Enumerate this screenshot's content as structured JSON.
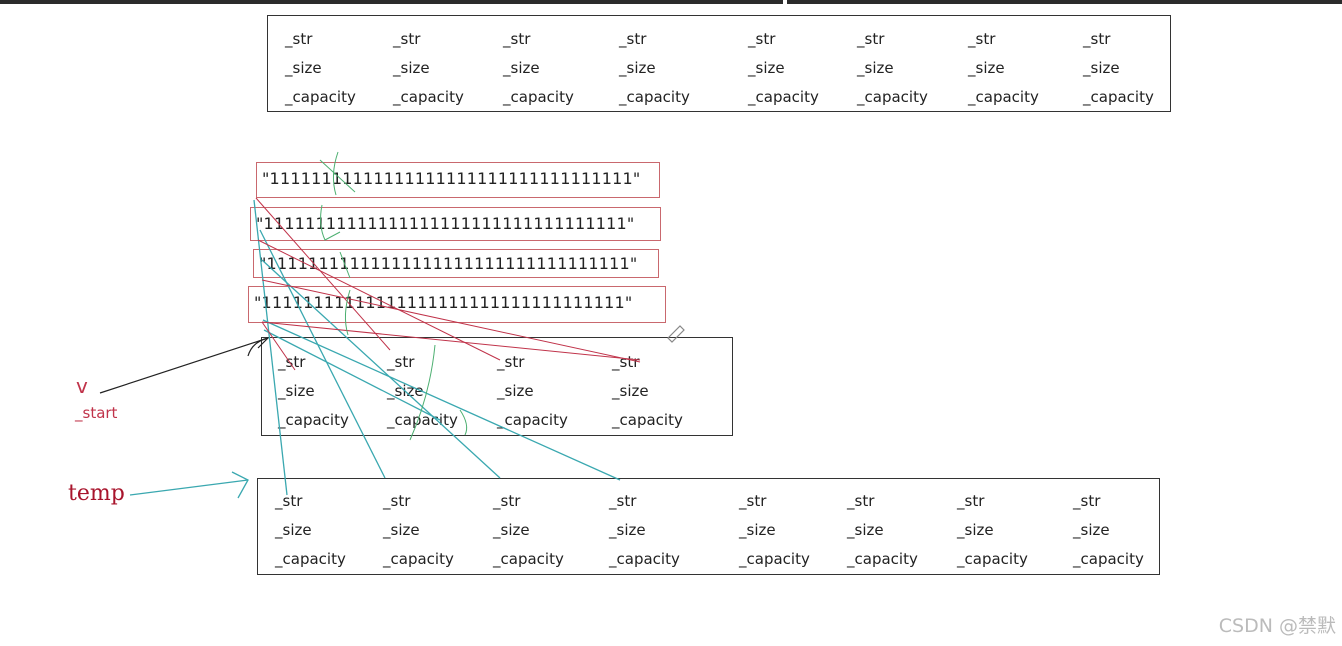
{
  "top_vector": {
    "cells": [
      {
        "str": "_str",
        "size": "_size",
        "capacity": "_capacity"
      },
      {
        "str": "_str",
        "size": "_size",
        "capacity": "_capacity"
      },
      {
        "str": "_str",
        "size": "_size",
        "capacity": "_capacity"
      },
      {
        "str": "_str",
        "size": "_size",
        "capacity": "_capacity"
      },
      {
        "str": "_str",
        "size": "_size",
        "capacity": "_capacity"
      },
      {
        "str": "_str",
        "size": "_size",
        "capacity": "_capacity"
      },
      {
        "str": "_str",
        "size": "_size",
        "capacity": "_capacity"
      },
      {
        "str": "_str",
        "size": "_size",
        "capacity": "_capacity"
      }
    ]
  },
  "strings": [
    "\"11111111111111111111111111111111111\"",
    "\"11111111111111111111111111111111111\"",
    "\"11111111111111111111111111111111111\"",
    "\"11111111111111111111111111111111111\""
  ],
  "v_vector": {
    "cells": [
      {
        "str": "_str",
        "size": "_size",
        "capacity": "_capacity"
      },
      {
        "str": "_str",
        "size": "_size",
        "capacity": "_capacity"
      },
      {
        "str": "_str",
        "size": "_size",
        "capacity": "_capacity"
      },
      {
        "str": "_str",
        "size": "_size",
        "capacity": "_capacity"
      }
    ]
  },
  "temp_vector": {
    "cells": [
      {
        "str": "_str",
        "size": "_size",
        "capacity": "_capacity"
      },
      {
        "str": "_str",
        "size": "_size",
        "capacity": "_capacity"
      },
      {
        "str": "_str",
        "size": "_size",
        "capacity": "_capacity"
      },
      {
        "str": "_str",
        "size": "_size",
        "capacity": "_capacity"
      },
      {
        "str": "_str",
        "size": "_size",
        "capacity": "_capacity"
      },
      {
        "str": "_str",
        "size": "_size",
        "capacity": "_capacity"
      },
      {
        "str": "_str",
        "size": "_size",
        "capacity": "_capacity"
      },
      {
        "str": "_str",
        "size": "_size",
        "capacity": "_capacity"
      }
    ]
  },
  "labels": {
    "v": "v",
    "v_start": "_start",
    "temp": "temp"
  },
  "watermark": "CSDN @禁默",
  "colors": {
    "string_box": "#c9686e",
    "label": "#c0334a",
    "arrow_teal": "#3aa8b0",
    "arrow_red": "#c0334a",
    "arrow_green": "#4caf70"
  }
}
